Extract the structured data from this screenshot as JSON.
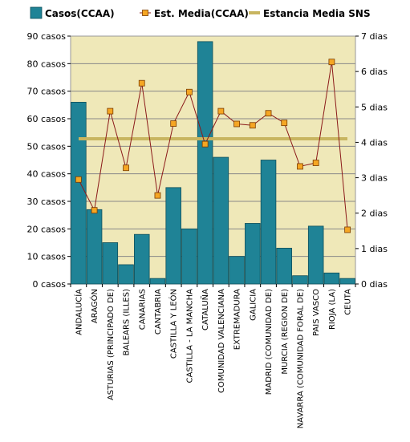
{
  "chart_data": {
    "type": "bar",
    "categories": [
      "ANDALUCÍA",
      "ARAGÓN",
      "ASTURIAS (PRINCIPADO DE)",
      "BALEARS (ILLES)",
      "CANARIAS",
      "CANTABRIA",
      "CASTILLA Y LEÓN",
      "CASTILLA - LA MANCHA",
      "CATALUÑA",
      "COMUNIDAD VALENCIANA",
      "EXTREMADURA",
      "GALICIA",
      "MADRID (COMUNIDAD DE)",
      "MURCIA (REGION DE)",
      "NAVARRA (COMUNIDAD FORAL DE)",
      "PAIS VASCO",
      "RIOJA (LA)",
      "CEUTA"
    ],
    "series": [
      {
        "name": "Casos(CCAA)",
        "type": "bar",
        "axis": "left",
        "color": "#1f8396",
        "values": [
          66,
          27,
          15,
          7,
          18,
          2,
          35,
          20,
          88,
          46,
          10,
          22,
          45,
          13,
          3,
          21,
          4,
          2
        ]
      },
      {
        "name": "Est.  Media(CCAA)",
        "type": "line",
        "axis": "right",
        "color": "#8b1a1a",
        "marker_color": "#f5a623",
        "values": [
          2.95,
          2.08,
          4.88,
          3.28,
          5.67,
          2.5,
          4.53,
          5.42,
          3.95,
          4.88,
          4.52,
          4.48,
          4.82,
          4.55,
          3.32,
          3.42,
          6.27,
          1.53
        ]
      },
      {
        "name": "Estancia Media SNS",
        "type": "reference",
        "axis": "right",
        "color": "#c8b560",
        "value": 4.1
      }
    ],
    "y_left": {
      "min": 0,
      "max": 90,
      "step": 10,
      "tick_labels": [
        "0 casos",
        "10 casos",
        "20 casos",
        "30 casos",
        "40 casos",
        "50 casos",
        "60 casos",
        "70 casos",
        "80 casos",
        "90 casos"
      ]
    },
    "y_right": {
      "min": 0,
      "max": 7,
      "step": 1,
      "tick_labels": [
        "0 dias",
        "1 dias",
        "2 dias",
        "3 dias",
        "4 dias",
        "5 dias",
        "6 dias",
        "7 dias"
      ]
    },
    "grid": true,
    "legend_position": "top",
    "plot_background": "#efe8b8",
    "title": "",
    "xlabel": "",
    "ylabel": ""
  }
}
